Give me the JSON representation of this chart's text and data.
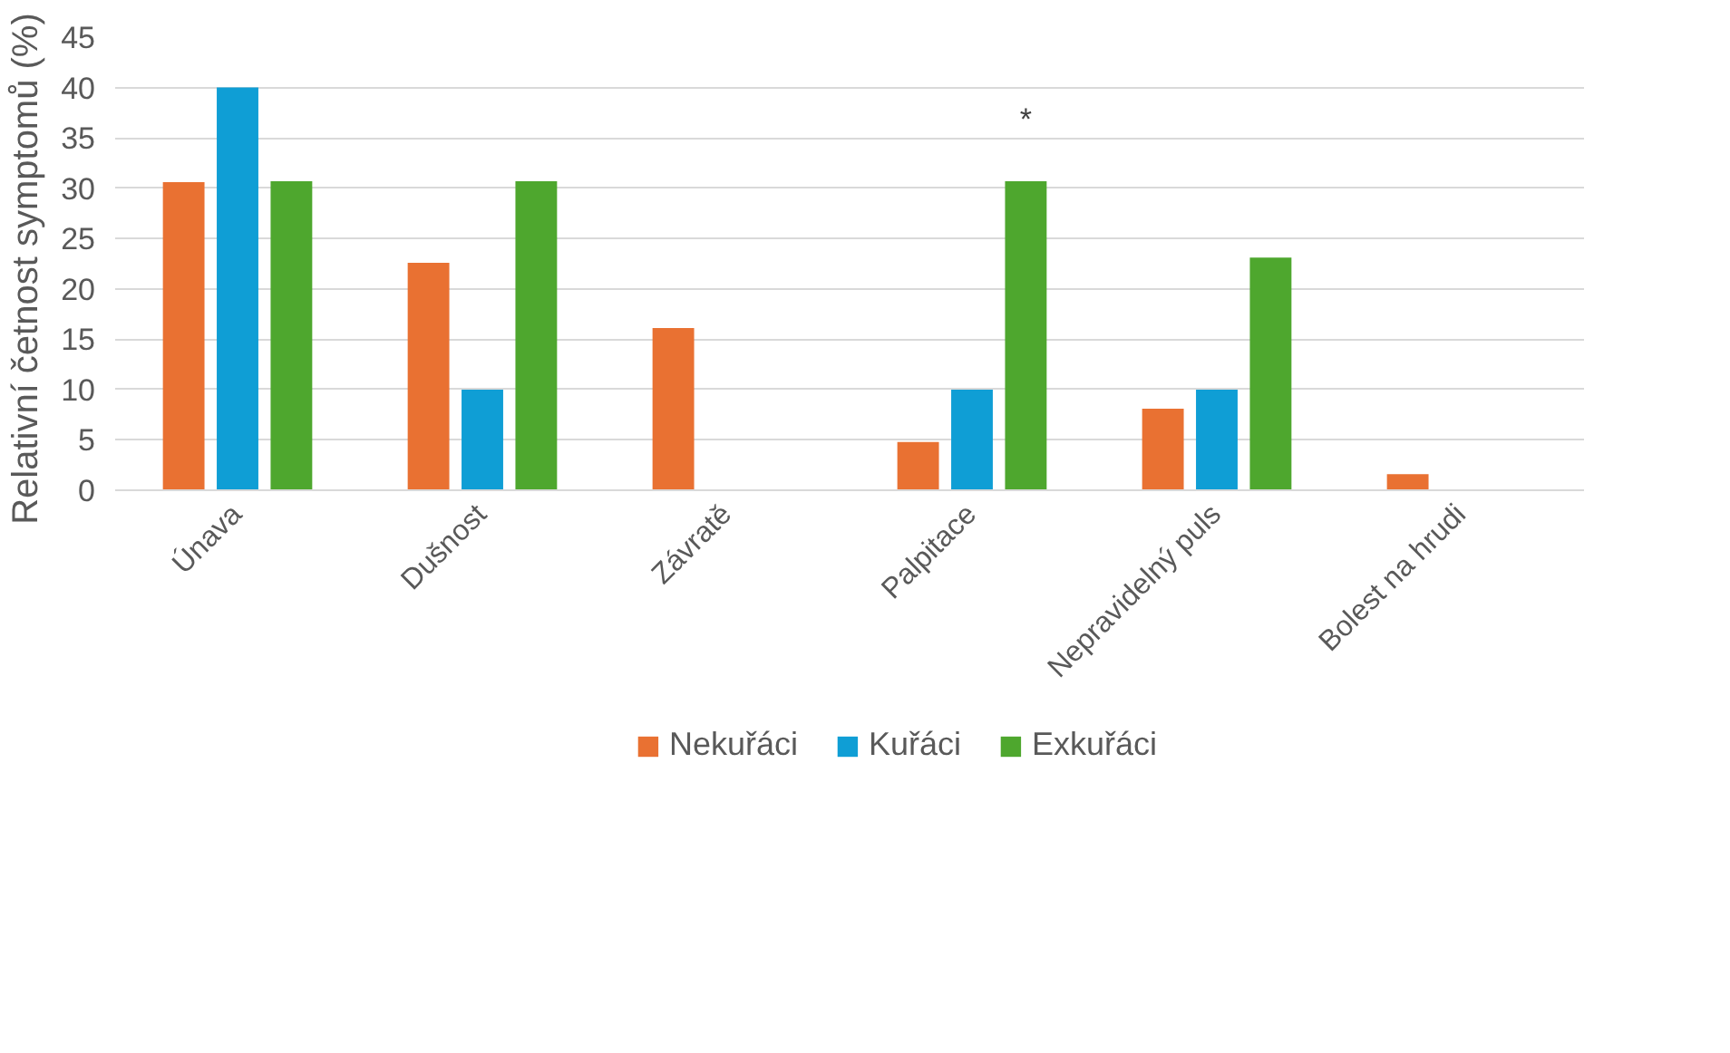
{
  "chart_data": {
    "type": "bar",
    "ylabel": "Relativní četnost symptomů  (%)",
    "categories": [
      "Únava",
      "Dušnost",
      "Závratě",
      "Palpitace",
      "Nepravidelný puls",
      "Bolest na hrudi"
    ],
    "series": [
      {
        "name": "Nekuřáci",
        "color": "#e97132",
        "values": [
          30.6,
          22.6,
          16.1,
          4.8,
          8.1,
          1.6
        ]
      },
      {
        "name": "Kuřáci",
        "color": "#0f9ed5",
        "values": [
          40,
          10,
          0,
          10,
          10,
          0
        ]
      },
      {
        "name": "Exkuřáci",
        "color": "#4ea72e",
        "values": [
          30.7,
          30.7,
          0,
          30.7,
          23.1,
          0
        ]
      }
    ],
    "ylim": [
      0,
      45
    ],
    "yticks": [
      0,
      5,
      10,
      15,
      20,
      25,
      30,
      35,
      40,
      45
    ],
    "grid": "y",
    "legend": "bottom",
    "annotations": [
      "*"
    ]
  }
}
